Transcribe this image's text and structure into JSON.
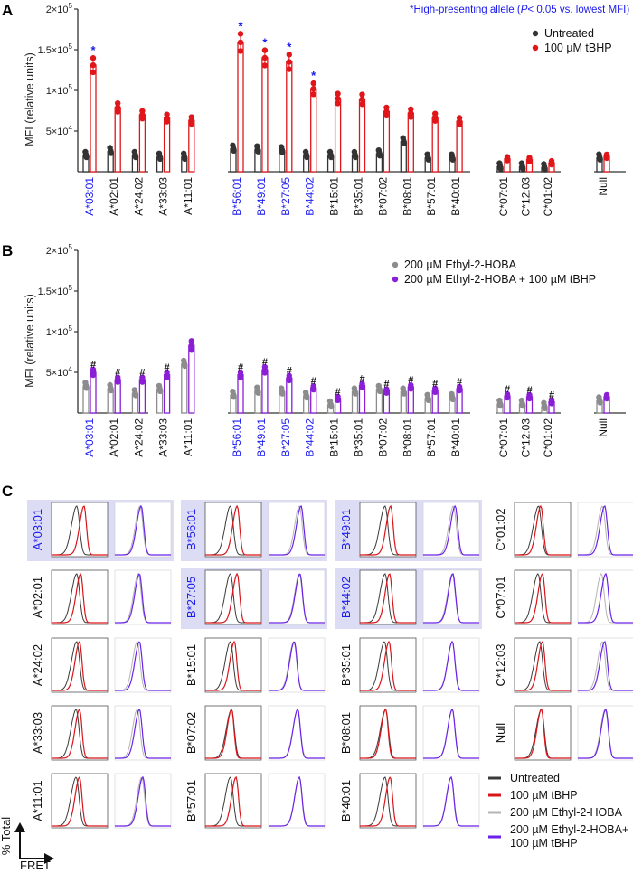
{
  "figure": {
    "note": "*High-presenting allele (",
    "note_p": "P",
    "note_rest": "< 0.05 vs. lowest MFI)"
  },
  "colors": {
    "untreated": "#333333",
    "tbhp": "#e0161b",
    "hoba": "#8c8c8c",
    "hoba_tbhp": "#8a1fd6",
    "high_label": "#1a1aee",
    "normal_label": "#111111",
    "highlight_bg": "#dcdcf5",
    "hist_untreated": "#3a3a3a",
    "hist_tbhp": "#d8151a",
    "hist_hoba": "#b4b4b4",
    "hist_hoba_tbhp": "#6a22e8"
  },
  "chart_data": [
    {
      "panel": "A",
      "type": "bar",
      "ylabel": "MFI (relative units)",
      "ylim": [
        0,
        200000
      ],
      "yticks": [
        {
          "value": 50000,
          "label": "5×10",
          "exp": "4"
        },
        {
          "value": 100000,
          "label": "1×10",
          "exp": "5"
        },
        {
          "value": 150000,
          "label": "1.5×10",
          "exp": "5"
        },
        {
          "value": 200000,
          "label": "2×10",
          "exp": "5"
        }
      ],
      "groups": [
        {
          "name": "A",
          "categories": [
            "A*03:01",
            "A*02:01",
            "A*24:02",
            "A*33:03",
            "A*11:01"
          ],
          "high": [
            true,
            false,
            false,
            false,
            false
          ]
        },
        {
          "name": "B",
          "categories": [
            "B*56:01",
            "B*49:01",
            "B*27:05",
            "B*44:02",
            "B*15:01",
            "B*35:01",
            "B*07:02",
            "B*08:01",
            "B*57:01",
            "B*40:01"
          ],
          "high": [
            true,
            true,
            true,
            true,
            false,
            false,
            false,
            false,
            false,
            false
          ]
        },
        {
          "name": "C",
          "categories": [
            "C*07:01",
            "C*12:03",
            "C*01:02"
          ],
          "high": [
            false,
            false,
            false
          ]
        },
        {
          "name": "Null",
          "categories": [
            "Null"
          ],
          "high": [
            false
          ]
        }
      ],
      "series": [
        {
          "name": "Untreated",
          "color_key": "untreated",
          "values": [
            20000,
            25000,
            20000,
            18000,
            18000,
            28000,
            27000,
            26000,
            20000,
            20000,
            20000,
            22000,
            37000,
            17000,
            17000,
            6000,
            6000,
            5000,
            17000
          ]
        },
        {
          "name": "100 µM tBHP",
          "color_key": "tbhp",
          "values": [
            131000,
            79000,
            70000,
            66000,
            63000,
            159000,
            140000,
            135000,
            102000,
            90000,
            89000,
            74000,
            72000,
            67000,
            62000,
            16000,
            15000,
            11000,
            19000
          ]
        }
      ],
      "annotations": {
        "symbol": "*",
        "on_series": 1,
        "indices": [
          0,
          5,
          6,
          7,
          8
        ],
        "color_key": "high_label"
      },
      "legend": {
        "placement": "top-right",
        "entries": [
          "Untreated",
          "100 µM tBHP"
        ]
      }
    },
    {
      "panel": "B",
      "type": "bar",
      "ylabel": "MFI (relative units)",
      "ylim": [
        0,
        200000
      ],
      "yticks": [
        {
          "value": 50000,
          "label": "5×10",
          "exp": "4"
        },
        {
          "value": 100000,
          "label": "1×10",
          "exp": "5"
        },
        {
          "value": 150000,
          "label": "1.5×10",
          "exp": "5"
        },
        {
          "value": 200000,
          "label": "2×10",
          "exp": "5"
        }
      ],
      "groups": [
        {
          "name": "A",
          "categories": [
            "A*03:01",
            "A*02:01",
            "A*24:02",
            "A*33:03",
            "A*11:01"
          ],
          "high": [
            true,
            false,
            false,
            false,
            false
          ]
        },
        {
          "name": "B",
          "categories": [
            "B*56:01",
            "B*49:01",
            "B*27:05",
            "B*44:02",
            "B*15:01",
            "B*35:01",
            "B*07:02",
            "B*08:01",
            "B*57:01",
            "B*40:01"
          ],
          "high": [
            true,
            true,
            true,
            true,
            false,
            false,
            false,
            false,
            false,
            false
          ]
        },
        {
          "name": "C",
          "categories": [
            "C*07:01",
            "C*12:03",
            "C*01:02"
          ],
          "high": [
            false,
            false,
            false
          ]
        },
        {
          "name": "Null",
          "categories": [
            "Null"
          ],
          "high": [
            false
          ]
        }
      ],
      "series": [
        {
          "name": "200 µM Ethyl-2-HOBA",
          "color_key": "hoba",
          "values": [
            33000,
            30000,
            24000,
            29000,
            60000,
            22000,
            27000,
            26000,
            21000,
            10000,
            26000,
            29000,
            26000,
            18000,
            19000,
            11000,
            11000,
            8000,
            15000
          ]
        },
        {
          "name": "200 µM Ethyl-2-HOBA + 100 µM tBHP",
          "color_key": "hoba_tbhp",
          "values": [
            50000,
            41000,
            41000,
            47000,
            83000,
            47000,
            53000,
            43000,
            31000,
            18000,
            34000,
            27000,
            32000,
            28000,
            30000,
            21000,
            20000,
            14000,
            20000
          ]
        }
      ],
      "annotations": {
        "symbol": "#",
        "on_series": 1,
        "indices": [
          0,
          1,
          2,
          3,
          5,
          6,
          7,
          8,
          9,
          10,
          11,
          12,
          13,
          14,
          15,
          16,
          17
        ],
        "color_key": "normal_label"
      },
      "legend": {
        "placement": "top-right",
        "entries": [
          "200 µM Ethyl-2-HOBA",
          "200 µM Ethyl-2-HOBA + 100 µM tBHP"
        ]
      }
    },
    {
      "panel": "C",
      "type": "histogram-grid",
      "xlabel": "FRET",
      "ylabel": "% Total",
      "columns": [
        [
          "A*03:01",
          "A*02:01",
          "A*24:02",
          "A*33:03",
          "A*11:01"
        ],
        [
          "B*56:01",
          "B*27:05",
          "B*15:01",
          "B*07:02",
          "B*57:01"
        ],
        [
          "B*49:01",
          "B*44:02",
          "B*35:01",
          "B*08:01",
          "B*40:01"
        ],
        [
          "C*01:02",
          "C*07:01",
          "C*12:03",
          "Null"
        ]
      ],
      "highlighted": [
        "A*03:01",
        "B*56:01",
        "B*27:05",
        "B*49:01",
        "B*44:02"
      ],
      "peak_shift": {
        "A*03:01": [
          0.45,
          0.58,
          0.45,
          0.47
        ],
        "A*02:01": [
          0.45,
          0.52,
          0.42,
          0.44
        ],
        "A*24:02": [
          0.45,
          0.5,
          0.4,
          0.44
        ],
        "A*33:03": [
          0.44,
          0.5,
          0.4,
          0.44
        ],
        "A*11:01": [
          0.44,
          0.5,
          0.48,
          0.5
        ],
        "B*56:01": [
          0.45,
          0.57,
          0.55,
          0.58
        ],
        "B*27:05": [
          0.45,
          0.57,
          0.55,
          0.56
        ],
        "B*15:01": [
          0.45,
          0.52,
          0.45,
          0.46
        ],
        "B*07:02": [
          0.47,
          0.47,
          0.52,
          0.52
        ],
        "B*57:01": [
          0.45,
          0.55,
          0.55,
          0.55
        ],
        "B*49:01": [
          0.45,
          0.55,
          0.54,
          0.57
        ],
        "B*44:02": [
          0.45,
          0.53,
          0.52,
          0.53
        ],
        "B*35:01": [
          0.44,
          0.52,
          0.52,
          0.52
        ],
        "B*08:01": [
          0.46,
          0.46,
          0.52,
          0.52
        ],
        "B*40:01": [
          0.45,
          0.54,
          0.5,
          0.5
        ],
        "C*01:02": [
          0.43,
          0.47,
          0.44,
          0.48
        ],
        "C*07:01": [
          0.42,
          0.5,
          0.42,
          0.5
        ],
        "C*12:03": [
          0.45,
          0.5,
          0.44,
          0.48
        ],
        "Null": [
          0.48,
          0.48,
          0.49,
          0.5
        ]
      },
      "legend": {
        "placement": "bottom-right",
        "entries": [
          {
            "label": "Untreated",
            "color_key": "hist_untreated"
          },
          {
            "label": "100  µM tBHP",
            "color_key": "hist_tbhp"
          },
          {
            "label": "200  µM Ethyl-2-HOBA",
            "color_key": "hist_hoba"
          },
          {
            "label": "200  µM Ethyl-2-HOBA+",
            "label2": "100  µM tBHP",
            "color_key": "hist_hoba_tbhp"
          }
        ]
      }
    }
  ],
  "panels": {
    "a": "A",
    "b": "B",
    "c": "C"
  }
}
